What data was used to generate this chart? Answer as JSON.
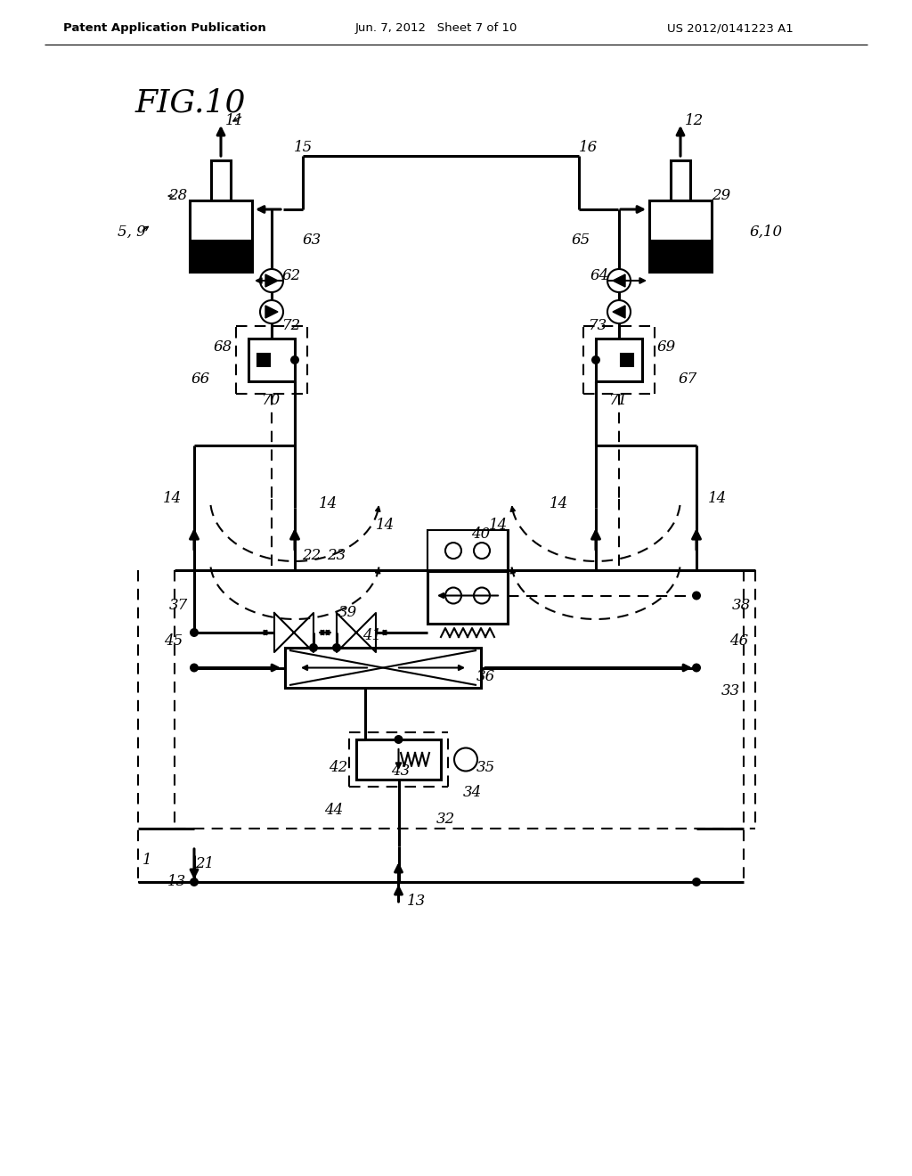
{
  "bg_color": "#ffffff",
  "line_color": "#000000",
  "header_left": "Patent Application Publication",
  "header_mid": "Jun. 7, 2012   Sheet 7 of 10",
  "header_right": "US 2012/0141223 A1",
  "fig_title": "FIG.10"
}
